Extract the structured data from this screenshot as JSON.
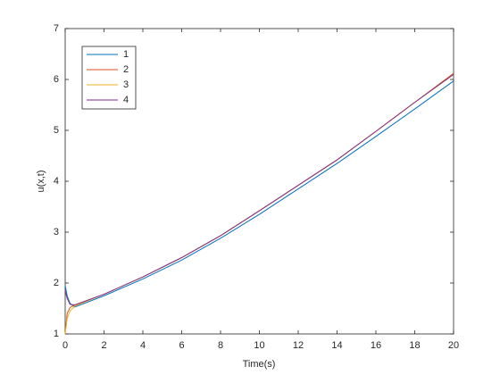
{
  "chart_data": {
    "type": "line",
    "xlabel": "Time(s)",
    "ylabel": "u(x,t)",
    "x": [
      0,
      0.1,
      0.25,
      0.5,
      2,
      4,
      6,
      8,
      10,
      12,
      14,
      16,
      18,
      20
    ],
    "series": [
      {
        "name": "1",
        "color": "#0072bd",
        "values": [
          1.95,
          1.75,
          1.6,
          1.53,
          1.75,
          2.08,
          2.45,
          2.88,
          3.35,
          3.85,
          4.35,
          4.88,
          5.42,
          5.97
        ]
      },
      {
        "name": "2",
        "color": "#d95319",
        "values": [
          1.0,
          1.4,
          1.52,
          1.57,
          1.78,
          2.12,
          2.5,
          2.93,
          3.42,
          3.92,
          4.42,
          4.98,
          5.55,
          6.12
        ]
      },
      {
        "name": "3",
        "color": "#edb120",
        "values": [
          1.0,
          1.3,
          1.45,
          1.55,
          1.78,
          2.12,
          2.5,
          2.93,
          3.42,
          3.92,
          4.42,
          4.98,
          5.55,
          6.1
        ]
      },
      {
        "name": "4",
        "color": "#7e2f8e",
        "values": [
          1.85,
          1.7,
          1.58,
          1.57,
          1.78,
          2.12,
          2.5,
          2.93,
          3.42,
          3.92,
          4.42,
          4.98,
          5.55,
          6.1
        ]
      }
    ],
    "xlim": [
      0,
      20
    ],
    "xticks": [
      0,
      2,
      4,
      6,
      8,
      10,
      12,
      14,
      16,
      18,
      20
    ],
    "ylim": [
      1,
      7
    ],
    "yticks": [
      1,
      2,
      3,
      4,
      5,
      6,
      7
    ],
    "legend": "upper-left"
  }
}
